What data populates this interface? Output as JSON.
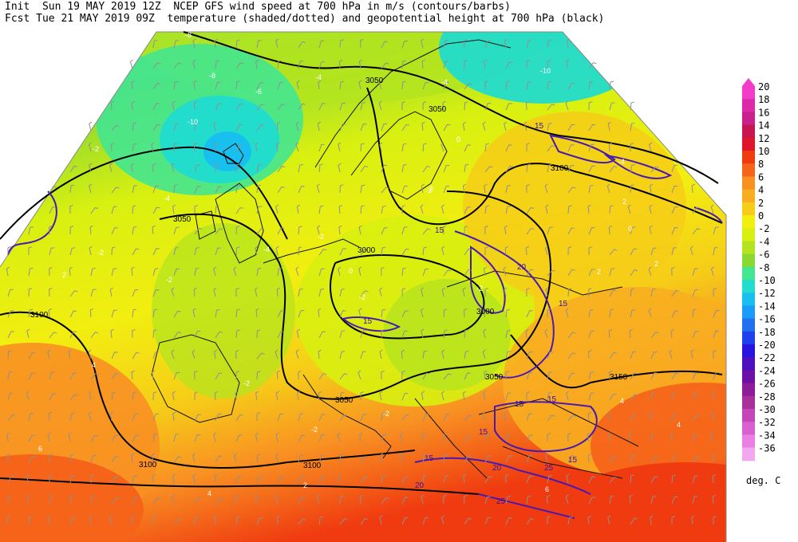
{
  "header": {
    "line1": "Init  Sun 19 MAY 2019 12Z  NCEP GFS wind speed at 700 hPa in m/s (contours/barbs)",
    "line2": "Fcst Tue 21 MAY 2019 09Z  temperature (shaded/dotted) and geopotential height at 700 hPa (black)"
  },
  "legend": {
    "unit": "deg. C",
    "entries": [
      {
        "label": "20",
        "color": "#f33cc8"
      },
      {
        "label": "18",
        "color": "#dd2aa8"
      },
      {
        "label": "16",
        "color": "#c8208c"
      },
      {
        "label": "14",
        "color": "#c81450"
      },
      {
        "label": "12",
        "color": "#e0142a"
      },
      {
        "label": "10",
        "color": "#f03a10"
      },
      {
        "label": "8",
        "color": "#f6641a"
      },
      {
        "label": "6",
        "color": "#f89022"
      },
      {
        "label": "4",
        "color": "#f8ae20"
      },
      {
        "label": "2",
        "color": "#f6cc18"
      },
      {
        "label": "0",
        "color": "#f2ee10"
      },
      {
        "label": "-2",
        "color": "#d8f010"
      },
      {
        "label": "-4",
        "color": "#b4e41e"
      },
      {
        "label": "-6",
        "color": "#8cd832"
      },
      {
        "label": "-8",
        "color": "#44e690"
      },
      {
        "label": "-10",
        "color": "#22dccc"
      },
      {
        "label": "-12",
        "color": "#18c0f0"
      },
      {
        "label": "-14",
        "color": "#1a9cf8"
      },
      {
        "label": "-16",
        "color": "#2070f0"
      },
      {
        "label": "-18",
        "color": "#2040f0"
      },
      {
        "label": "-20",
        "color": "#2814e0"
      },
      {
        "label": "-22",
        "color": "#4c10c0"
      },
      {
        "label": "-24",
        "color": "#6c10a8"
      },
      {
        "label": "-26",
        "color": "#8c1c98"
      },
      {
        "label": "-28",
        "color": "#a8309c"
      },
      {
        "label": "-30",
        "color": "#c446b8"
      },
      {
        "label": "-32",
        "color": "#d860d0"
      },
      {
        "label": "-34",
        "color": "#ea80e4"
      },
      {
        "label": "-36",
        "color": "#f2a8ee"
      }
    ]
  },
  "map": {
    "height_labels": [
      "3050",
      "3050",
      "3100",
      "3050",
      "3000",
      "3000",
      "3050",
      "3050",
      "3100",
      "3150",
      "3100",
      "3100",
      "3100"
    ],
    "wind_labels": [
      "15",
      "15",
      "15",
      "20",
      "15",
      "15",
      "15",
      "15",
      "20",
      "20",
      "25",
      "15",
      "25",
      "15"
    ],
    "temp_labels": [
      "-8",
      "-8",
      "-6",
      "-4",
      "-4",
      "-10",
      "-10",
      "-2",
      "-4",
      "-4",
      "0",
      "2",
      "-2",
      "-4",
      "-2",
      "-2",
      "0",
      "-2",
      "-2",
      "-2",
      "2",
      "0",
      "2",
      "4",
      "2",
      "-2",
      "-2",
      "-2",
      "2",
      "4",
      "6",
      "6",
      "2",
      "4",
      "4"
    ]
  }
}
